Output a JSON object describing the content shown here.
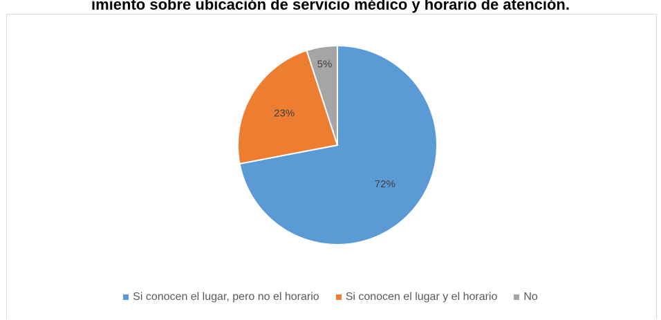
{
  "title": "imiento sobre ubicación de servicio médico y horario de atención.",
  "colors": {
    "series1": "#5b9bd5",
    "series2": "#ed7d31",
    "series3": "#a5a5a5",
    "label_text": "#404040",
    "legend_text": "#595959",
    "frame": "#d9d9d9"
  },
  "chart_data": {
    "type": "pie",
    "title": "imiento sobre ubicación de servicio médico y horario de atención.",
    "categories": [
      "Si conocen el lugar, pero no el horario",
      "Si conocen el lugar y el horario",
      "No"
    ],
    "values": [
      72,
      23,
      5
    ],
    "labels": [
      "72%",
      "23%",
      "5%"
    ],
    "legend_position": "bottom"
  }
}
